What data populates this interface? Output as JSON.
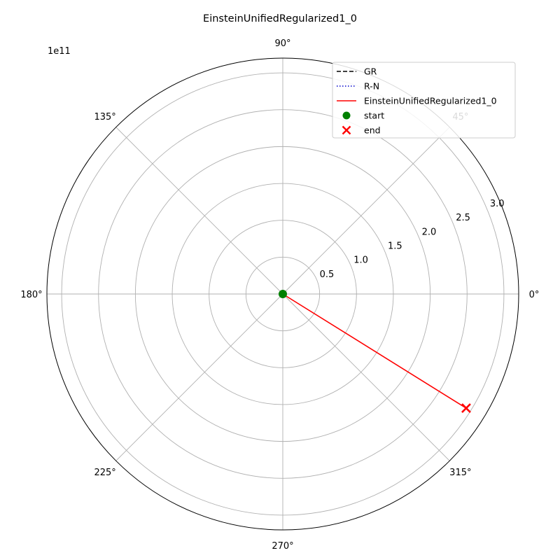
{
  "chart_data": {
    "type": "polar-line",
    "title": "EinsteinUnifiedRegularized1_0",
    "radial_axis": {
      "exponent_label": "1e11",
      "range": [
        0,
        3.0
      ],
      "ticks": [
        0.5,
        1.0,
        1.5,
        2.0,
        2.5,
        3.0
      ],
      "tick_labels": [
        "0.5",
        "1.0",
        "1.5",
        "2.0",
        "2.5",
        "3.0"
      ],
      "label_angle_deg": 22.5
    },
    "angular_axis": {
      "ticks_deg": [
        0,
        45,
        90,
        135,
        180,
        225,
        270,
        315
      ],
      "tick_labels": [
        "0°",
        "45°",
        "90°",
        "135°",
        "180°",
        "225°",
        "270°",
        "315°"
      ]
    },
    "grid": true,
    "legend": {
      "placement": "top-right",
      "entries": [
        {
          "label": "GR",
          "color": "#000000",
          "style": "dashed",
          "marker": "line"
        },
        {
          "label": "R-N",
          "color": "#0000cc",
          "style": "dotted",
          "marker": "line"
        },
        {
          "label": "EinsteinUnifiedRegularized1_0",
          "color": "#ff0000",
          "style": "solid",
          "marker": "line"
        },
        {
          "label": "start",
          "color": "#008000",
          "style": "none",
          "marker": "circle"
        },
        {
          "label": "end",
          "color": "#ff0000",
          "style": "none",
          "marker": "x"
        }
      ]
    },
    "series": [
      {
        "name": "GR",
        "color": "#000000",
        "style": "dashed",
        "points": []
      },
      {
        "name": "R-N",
        "color": "#0000cc",
        "style": "dotted",
        "points": []
      },
      {
        "name": "EinsteinUnifiedRegularized1_0",
        "color": "#ff0000",
        "style": "solid",
        "points": [
          {
            "theta_deg": 0,
            "r": 0
          },
          {
            "theta_deg": 328.1,
            "r": 2.93
          }
        ]
      }
    ],
    "start": {
      "theta_deg": 0,
      "r": 0,
      "color": "#008000"
    },
    "end": {
      "theta_deg": 328.1,
      "r": 2.93,
      "color": "#ff0000"
    }
  }
}
